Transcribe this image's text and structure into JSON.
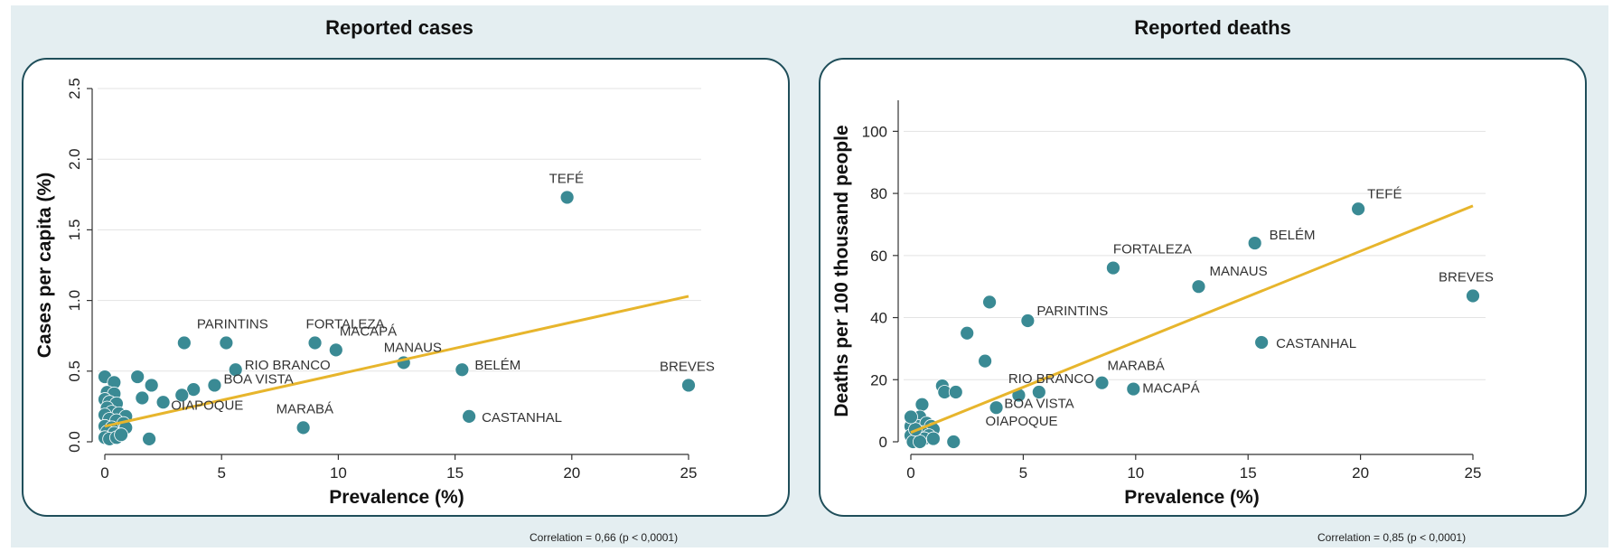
{
  "chart_data": [
    {
      "type": "scatter",
      "title": "Reported cases",
      "xlabel": "Prevalence (%)",
      "ylabel": "Cases per capita (%)",
      "xlim": [
        0,
        25
      ],
      "ylim": [
        0,
        2.5
      ],
      "xticks": [
        0,
        5,
        10,
        15,
        20,
        25
      ],
      "yticks": [
        0.0,
        0.5,
        1.0,
        1.5,
        2.0,
        2.5
      ],
      "ytick_labels": [
        "0.0",
        "0.5",
        "1.0",
        "1.5",
        "2.0",
        "2.5"
      ],
      "grid": true,
      "marker_color": "#3a8a94",
      "fit_color": "#e7b52c",
      "fit_line": {
        "x": [
          0,
          25
        ],
        "y": [
          0.11,
          1.03
        ]
      },
      "correlation_note": "Correlation = 0,66 (p < 0,0001)",
      "points": [
        {
          "x": 19.8,
          "y": 1.73,
          "label": "TEFÉ"
        },
        {
          "x": 3.4,
          "y": 0.7,
          "label": "PARINTINS"
        },
        {
          "x": 5.2,
          "y": 0.7,
          "label": ""
        },
        {
          "x": 9.0,
          "y": 0.7,
          "label": "FORTALEZA"
        },
        {
          "x": 9.9,
          "y": 0.65,
          "label": "MACAPÁ"
        },
        {
          "x": 12.8,
          "y": 0.56,
          "label": "MANAUS"
        },
        {
          "x": 5.6,
          "y": 0.51,
          "label": "RIO BRANCO"
        },
        {
          "x": 15.3,
          "y": 0.51,
          "label": "BELÉM"
        },
        {
          "x": 25.0,
          "y": 0.4,
          "label": "BREVES"
        },
        {
          "x": 4.7,
          "y": 0.4,
          "label": "BOA VISTA"
        },
        {
          "x": 3.8,
          "y": 0.37,
          "label": ""
        },
        {
          "x": 3.3,
          "y": 0.33,
          "label": "OIAPOQUE"
        },
        {
          "x": 8.5,
          "y": 0.1,
          "label": "MARABÁ"
        },
        {
          "x": 15.6,
          "y": 0.18,
          "label": "CASTANHAL"
        },
        {
          "x": 1.4,
          "y": 0.46,
          "label": ""
        },
        {
          "x": 2.0,
          "y": 0.4,
          "label": ""
        },
        {
          "x": 1.6,
          "y": 0.31,
          "label": ""
        },
        {
          "x": 2.5,
          "y": 0.28,
          "label": ""
        },
        {
          "x": 1.9,
          "y": 0.02,
          "label": ""
        },
        {
          "x": 0.0,
          "y": 0.46,
          "label": ""
        },
        {
          "x": 0.4,
          "y": 0.42,
          "label": ""
        },
        {
          "x": 0.1,
          "y": 0.35,
          "label": ""
        },
        {
          "x": 0.4,
          "y": 0.34,
          "label": ""
        },
        {
          "x": 0.0,
          "y": 0.3,
          "label": ""
        },
        {
          "x": 0.2,
          "y": 0.28,
          "label": ""
        },
        {
          "x": 0.5,
          "y": 0.27,
          "label": ""
        },
        {
          "x": 0.1,
          "y": 0.24,
          "label": ""
        },
        {
          "x": 0.3,
          "y": 0.21,
          "label": ""
        },
        {
          "x": 0.0,
          "y": 0.19,
          "label": ""
        },
        {
          "x": 0.6,
          "y": 0.2,
          "label": ""
        },
        {
          "x": 0.9,
          "y": 0.18,
          "label": ""
        },
        {
          "x": 0.2,
          "y": 0.16,
          "label": ""
        },
        {
          "x": 0.5,
          "y": 0.15,
          "label": ""
        },
        {
          "x": 0.8,
          "y": 0.13,
          "label": ""
        },
        {
          "x": 0.0,
          "y": 0.11,
          "label": ""
        },
        {
          "x": 0.3,
          "y": 0.1,
          "label": ""
        },
        {
          "x": 0.9,
          "y": 0.1,
          "label": ""
        },
        {
          "x": 0.1,
          "y": 0.07,
          "label": ""
        },
        {
          "x": 0.4,
          "y": 0.06,
          "label": ""
        },
        {
          "x": 0.0,
          "y": 0.03,
          "label": ""
        },
        {
          "x": 0.2,
          "y": 0.02,
          "label": ""
        },
        {
          "x": 0.5,
          "y": 0.03,
          "label": ""
        },
        {
          "x": 0.7,
          "y": 0.05,
          "label": ""
        }
      ]
    },
    {
      "type": "scatter",
      "title": "Reported deaths",
      "xlabel": "Prevalence (%)",
      "ylabel": "Deaths per 100 thousand people",
      "xlim": [
        0,
        25
      ],
      "ylim": [
        0,
        110
      ],
      "xticks": [
        0,
        5,
        10,
        15,
        20,
        25
      ],
      "yticks": [
        0,
        20,
        40,
        60,
        80,
        100
      ],
      "ytick_labels": [
        "0",
        "20",
        "40",
        "60",
        "80",
        "100"
      ],
      "grid": true,
      "marker_color": "#3a8a94",
      "fit_color": "#e7b52c",
      "fit_line": {
        "x": [
          0,
          25
        ],
        "y": [
          3,
          76
        ]
      },
      "correlation_note": "Correlation = 0,85 (p < 0,0001)",
      "points": [
        {
          "x": 19.9,
          "y": 75,
          "label": "TEFÉ"
        },
        {
          "x": 15.3,
          "y": 64,
          "label": "BELÉM"
        },
        {
          "x": 9.0,
          "y": 56,
          "label": "FORTALEZA"
        },
        {
          "x": 12.8,
          "y": 50,
          "label": "MANAUS"
        },
        {
          "x": 25.0,
          "y": 47,
          "label": "BREVES"
        },
        {
          "x": 3.5,
          "y": 45,
          "label": ""
        },
        {
          "x": 5.2,
          "y": 39,
          "label": "PARINTINS"
        },
        {
          "x": 2.5,
          "y": 35,
          "label": ""
        },
        {
          "x": 15.6,
          "y": 32,
          "label": "CASTANHAL"
        },
        {
          "x": 3.3,
          "y": 26,
          "label": ""
        },
        {
          "x": 8.5,
          "y": 19,
          "label": "MARABÁ"
        },
        {
          "x": 9.9,
          "y": 17,
          "label": "MACAPÁ"
        },
        {
          "x": 5.7,
          "y": 16,
          "label": "RIO BRANCO"
        },
        {
          "x": 4.8,
          "y": 15,
          "label": "BOA VISTA"
        },
        {
          "x": 3.8,
          "y": 11,
          "label": "OIAPOQUE"
        },
        {
          "x": 1.4,
          "y": 18,
          "label": ""
        },
        {
          "x": 1.5,
          "y": 16,
          "label": ""
        },
        {
          "x": 2.0,
          "y": 16,
          "label": ""
        },
        {
          "x": 1.9,
          "y": 0,
          "label": ""
        },
        {
          "x": 0.5,
          "y": 12,
          "label": ""
        },
        {
          "x": 0.1,
          "y": 7,
          "label": ""
        },
        {
          "x": 0.4,
          "y": 8,
          "label": ""
        },
        {
          "x": 0.0,
          "y": 5,
          "label": ""
        },
        {
          "x": 0.3,
          "y": 5,
          "label": ""
        },
        {
          "x": 0.7,
          "y": 6,
          "label": ""
        },
        {
          "x": 0.9,
          "y": 5,
          "label": ""
        },
        {
          "x": 1.0,
          "y": 4,
          "label": ""
        },
        {
          "x": 0.2,
          "y": 3,
          "label": ""
        },
        {
          "x": 0.5,
          "y": 3,
          "label": ""
        },
        {
          "x": 0.8,
          "y": 2,
          "label": ""
        },
        {
          "x": 0.0,
          "y": 2,
          "label": ""
        },
        {
          "x": 0.3,
          "y": 1,
          "label": ""
        },
        {
          "x": 0.6,
          "y": 1,
          "label": ""
        },
        {
          "x": 1.0,
          "y": 1,
          "label": ""
        },
        {
          "x": 0.1,
          "y": 0,
          "label": ""
        },
        {
          "x": 0.4,
          "y": 0,
          "label": ""
        },
        {
          "x": 0.2,
          "y": 4,
          "label": ""
        },
        {
          "x": 0.0,
          "y": 8,
          "label": ""
        }
      ]
    }
  ]
}
